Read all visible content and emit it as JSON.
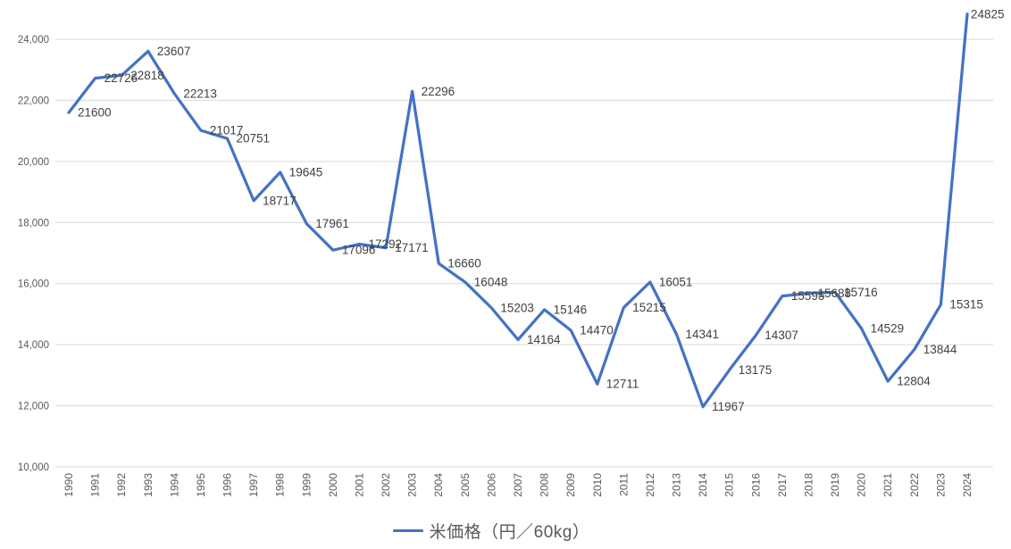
{
  "page": {
    "background": "#ffffff"
  },
  "chart_data": {
    "type": "line",
    "title": "",
    "categories": [
      "1990",
      "1991",
      "1992",
      "1993",
      "1994",
      "1995",
      "1996",
      "1997",
      "1998",
      "1999",
      "2000",
      "2001",
      "2002",
      "2003",
      "2004",
      "2005",
      "2006",
      "2007",
      "2008",
      "2009",
      "2010",
      "2011",
      "2012",
      "2013",
      "2014",
      "2015",
      "2016",
      "2017",
      "2018",
      "2019",
      "2020",
      "2021",
      "2022",
      "2023",
      "2024"
    ],
    "series": [
      {
        "name": "米価格（円／60kg）",
        "color": "#4472C4",
        "values": [
          21600,
          22726,
          22818,
          23607,
          22213,
          21017,
          20751,
          18717,
          19645,
          17961,
          17096,
          17292,
          17171,
          22296,
          16660,
          16048,
          15203,
          14164,
          15146,
          14470,
          12711,
          15215,
          16051,
          14341,
          11967,
          13175,
          14307,
          15595,
          15688,
          15716,
          14529,
          12804,
          13844,
          15315,
          24825
        ]
      }
    ],
    "data_labels_visible": true,
    "y_axis": {
      "min": 10000,
      "max": 24000,
      "tick_step": 2000,
      "ticks": [
        {
          "value": 10000,
          "label": "10,000"
        },
        {
          "value": 12000,
          "label": "12,000"
        },
        {
          "value": 14000,
          "label": "14,000"
        },
        {
          "value": 16000,
          "label": "16,000"
        },
        {
          "value": 18000,
          "label": "18,000"
        },
        {
          "value": 20000,
          "label": "20,000"
        },
        {
          "value": 22000,
          "label": "22,000"
        },
        {
          "value": 24000,
          "label": "24,000"
        }
      ]
    },
    "x_axis": {
      "label_rotation_degrees": -90
    },
    "gridlines": "horizontal",
    "legend": {
      "position": "bottom",
      "label": "米価格（円／60kg）"
    },
    "colors": {
      "line": "#4472C4",
      "gridline": "#D9D9D9",
      "axis_text": "#595959",
      "data_label_text": "#404040",
      "legend_text": "#595959"
    }
  }
}
